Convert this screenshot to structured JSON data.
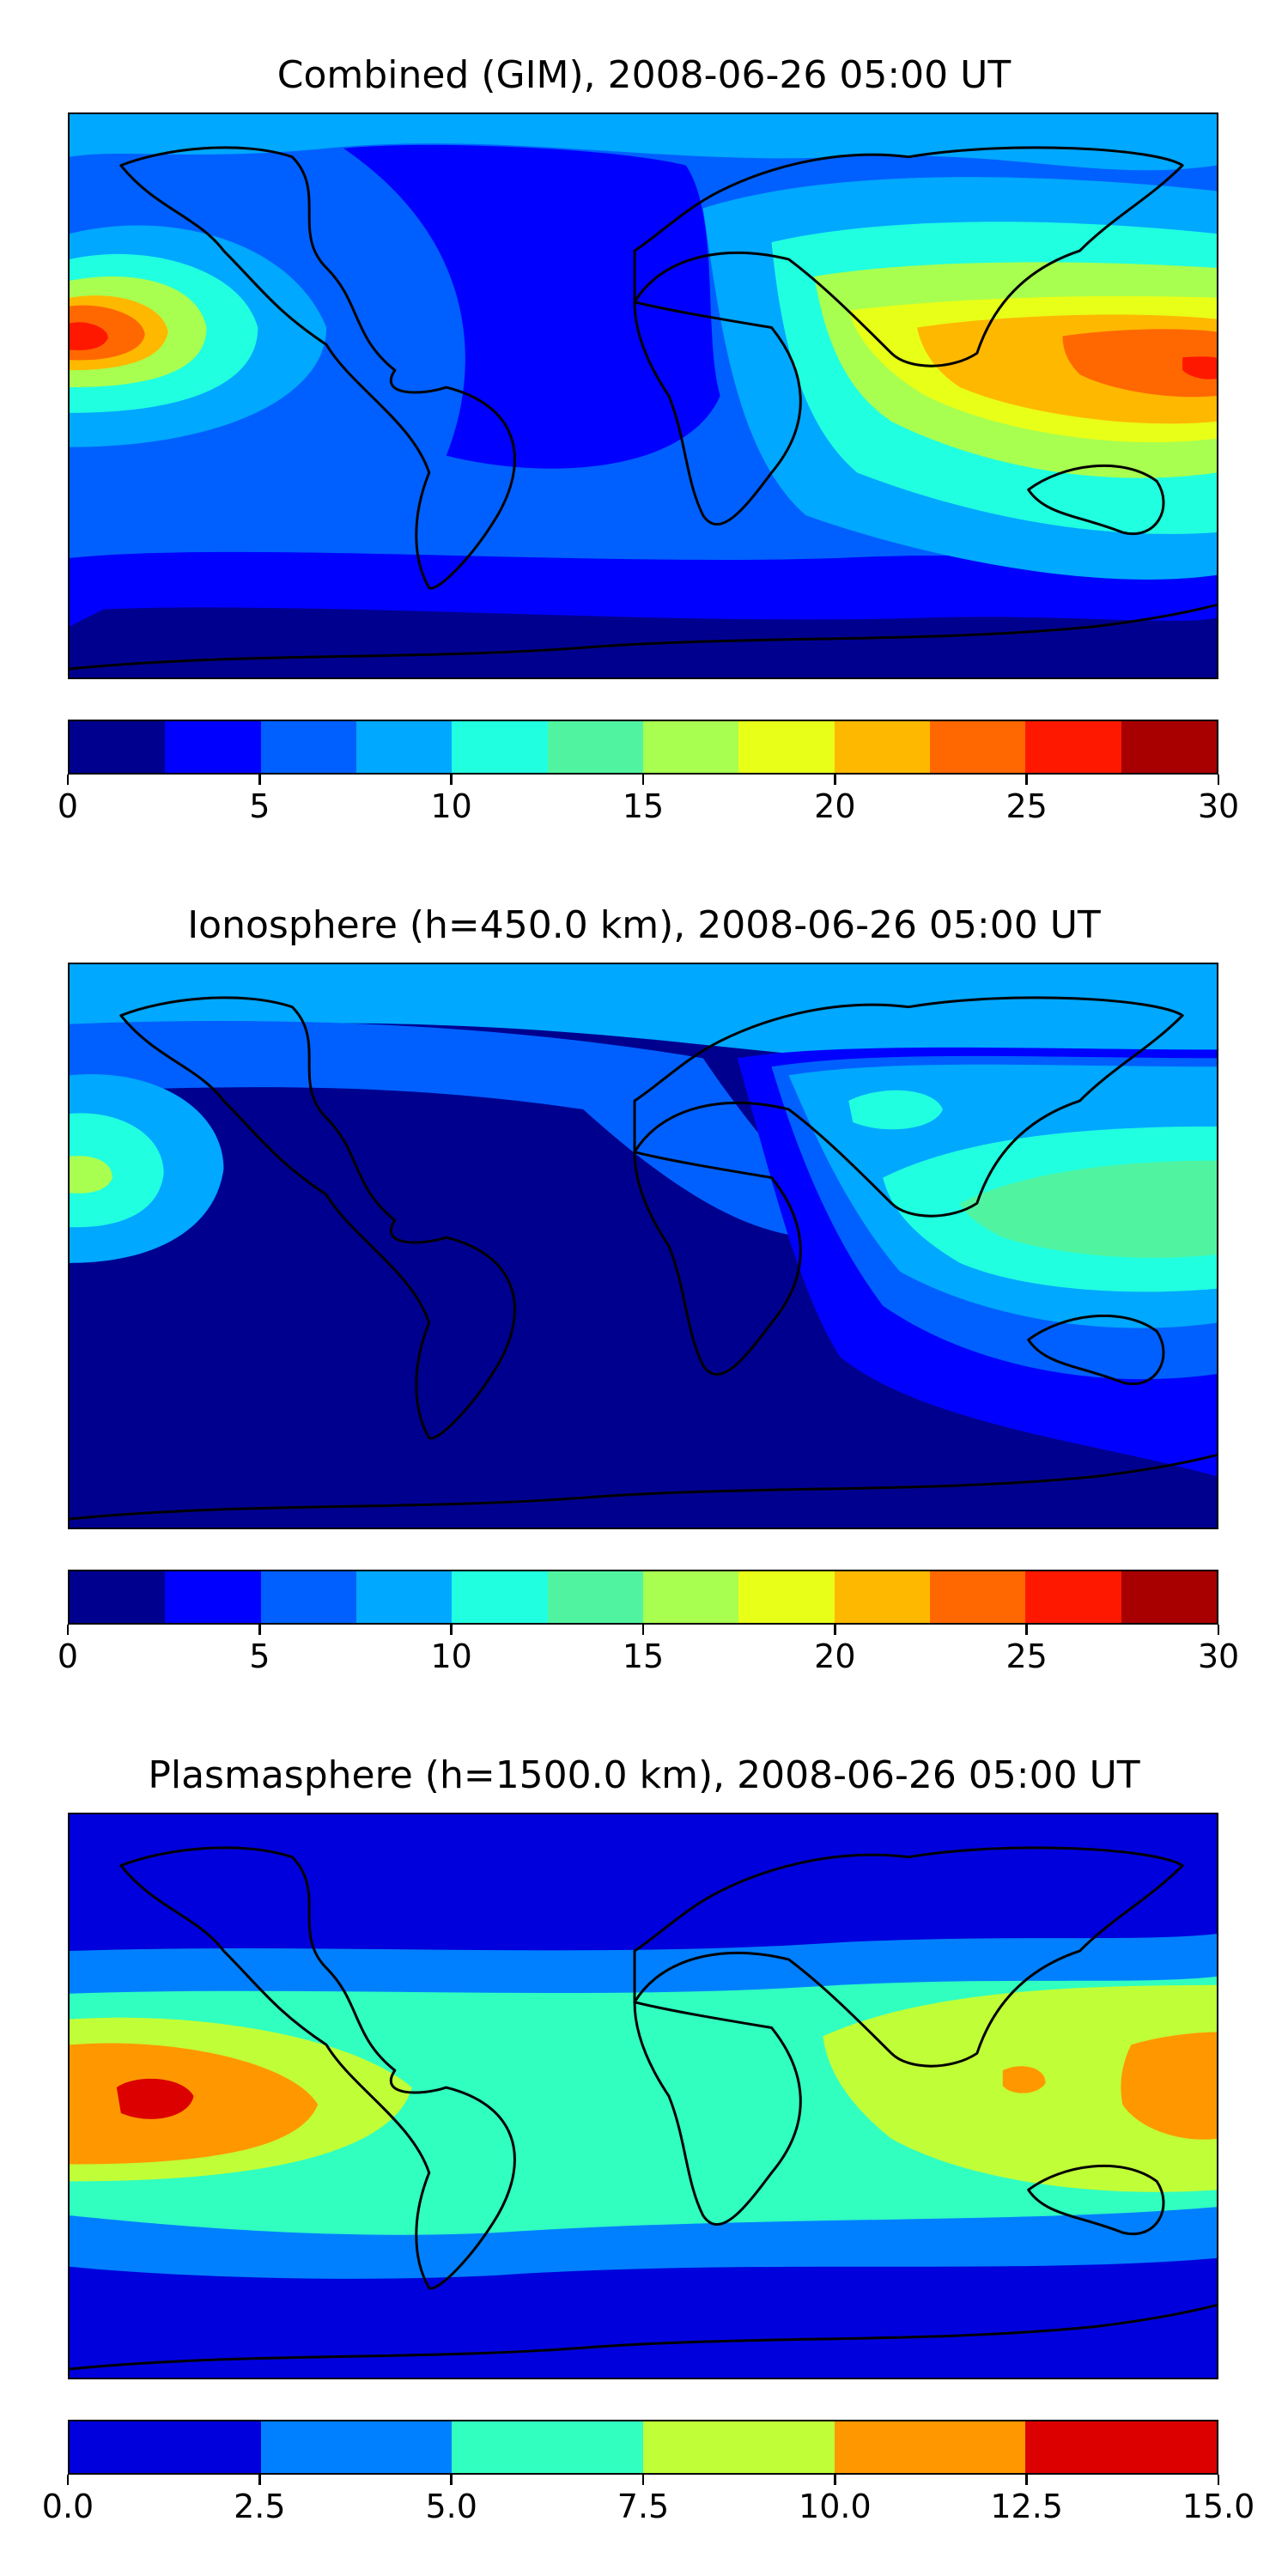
{
  "panels": [
    {
      "title": "Combined (GIM), 2008-06-26 05:00 UT",
      "colorbar": {
        "colors": [
          "#00008f",
          "#0000ff",
          "#0060ff",
          "#00a8ff",
          "#20ffe0",
          "#50f4a0",
          "#a8ff50",
          "#e8ff18",
          "#ffb800",
          "#ff6800",
          "#ff1800",
          "#a80000"
        ],
        "ticks": [
          "0",
          "5",
          "10",
          "15",
          "20",
          "25",
          "30"
        ]
      }
    },
    {
      "title": "Ionosphere  (h=450.0 km), 2008-06-26 05:00 UT",
      "colorbar": {
        "colors": [
          "#00008f",
          "#0000ff",
          "#0060ff",
          "#00a8ff",
          "#20ffe0",
          "#50f4a0",
          "#a8ff50",
          "#e8ff18",
          "#ffb800",
          "#ff6800",
          "#ff1800",
          "#a80000"
        ],
        "ticks": [
          "0",
          "5",
          "10",
          "15",
          "20",
          "25",
          "30"
        ]
      }
    },
    {
      "title": "Plasmasphere (h=1500.0 km), 2008-06-26 05:00 UT",
      "colorbar": {
        "colors": [
          "#0000dc",
          "#0080ff",
          "#30ffc0",
          "#c0ff38",
          "#ff9800",
          "#dc0000"
        ],
        "ticks": [
          "0.0",
          "2.5",
          "5.0",
          "7.5",
          "10.0",
          "12.5",
          "15.0"
        ]
      }
    }
  ]
}
